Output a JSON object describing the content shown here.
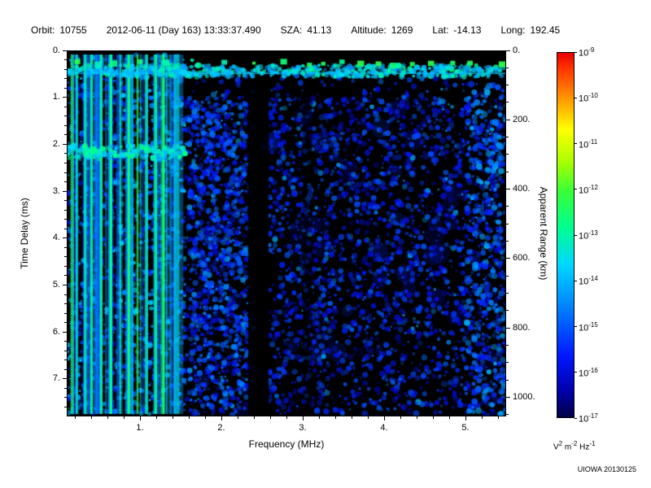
{
  "header": {
    "orbit": {
      "label": "Orbit:",
      "value": "10755"
    },
    "datetime": {
      "value": "2012-06-11 (Day 163) 13:33:37.490"
    },
    "sza": {
      "label": "SZA:",
      "value": "41.13"
    },
    "altitude": {
      "label": "Altitude:",
      "value": "1269"
    },
    "lat": {
      "label": "Lat:",
      "value": "-14.13"
    },
    "long": {
      "label": "Long:",
      "value": "192.45"
    }
  },
  "credit": "UIOWA 20130125",
  "chart_data": {
    "type": "heatmap",
    "title": "",
    "xlabel": "Frequency (MHz)",
    "ylabel_left": "Time Delay (ms)",
    "ylabel_right": "Apparent Range (km)",
    "x_range": [
      0.1,
      5.5
    ],
    "x_major_ticks": [
      {
        "v": 1.0,
        "label": "1."
      },
      {
        "v": 2.0,
        "label": "2."
      },
      {
        "v": 3.0,
        "label": "3."
      },
      {
        "v": 4.0,
        "label": "4."
      },
      {
        "v": 5.0,
        "label": "5."
      }
    ],
    "x_minor_step": 0.2,
    "y_left_range": [
      0,
      7.8
    ],
    "y_left_major_ticks": [
      {
        "v": 0,
        "label": "0."
      },
      {
        "v": 1,
        "label": "1."
      },
      {
        "v": 2,
        "label": "2."
      },
      {
        "v": 3,
        "label": "3."
      },
      {
        "v": 4,
        "label": "4."
      },
      {
        "v": 5,
        "label": "5."
      },
      {
        "v": 6,
        "label": "6."
      },
      {
        "v": 7,
        "label": "7."
      }
    ],
    "y_left_minor_step": 0.2,
    "y_right_range": [
      0,
      1055
    ],
    "y_right_major_ticks": [
      {
        "v": 0,
        "label": "0."
      },
      {
        "v": 200,
        "label": "200."
      },
      {
        "v": 400,
        "label": "400."
      },
      {
        "v": 600,
        "label": "600."
      },
      {
        "v": 800,
        "label": "800."
      },
      {
        "v": 1000,
        "label": "1000."
      }
    ],
    "y_right_minor_step": 50,
    "grid": false,
    "legend": "colorbar-right",
    "colorbar": {
      "tick_exponents": [
        -9,
        -10,
        -11,
        -12,
        -13,
        -14,
        -15,
        -16,
        -17
      ],
      "unit_parts": [
        {
          "base": "V",
          "exp": "2"
        },
        {
          "base": "m",
          "exp": "-2"
        },
        {
          "base": "Hz",
          "exp": "-1"
        }
      ],
      "gradient_stops": [
        {
          "pos": 0.0,
          "color": "#000046"
        },
        {
          "pos": 0.07,
          "color": "#0000a8"
        },
        {
          "pos": 0.17,
          "color": "#0018ff"
        },
        {
          "pos": 0.3,
          "color": "#0080ff"
        },
        {
          "pos": 0.42,
          "color": "#00d8ff"
        },
        {
          "pos": 0.52,
          "color": "#00ff90"
        },
        {
          "pos": 0.62,
          "color": "#38ff38"
        },
        {
          "pos": 0.7,
          "color": "#a8ff00"
        },
        {
          "pos": 0.79,
          "color": "#ffff00"
        },
        {
          "pos": 0.88,
          "color": "#ff9000"
        },
        {
          "pos": 0.96,
          "color": "#ff3000"
        },
        {
          "pos": 1.0,
          "color": "#e60000"
        }
      ]
    },
    "heatmap_seed": 1337,
    "features": [
      "Bright surface-reflection band near 0.3-0.5 ms time delay spanning all frequencies, with periodic bright green blips along the top",
      "Strong vertical ionospheric interference stripes (green/cyan over blue) below ~1.5 MHz spanning the full time-delay range",
      "Horizontal echo streak near 2.1 ms confined below ~1.5 MHz with a bright green knot near 0.4 MHz",
      "Diffuse weak blue noise speckle from ~0.8 ms downward across 1.6-5.5 MHz",
      "Dark attenuation column near 2.4 MHz and a weaker one near 3.05 MHz",
      "Slightly enhanced blue noise column near the 5.5 MHz right edge",
      "Background is black (below 1e-17 V^2 m^-2 Hz^-1)"
    ]
  }
}
